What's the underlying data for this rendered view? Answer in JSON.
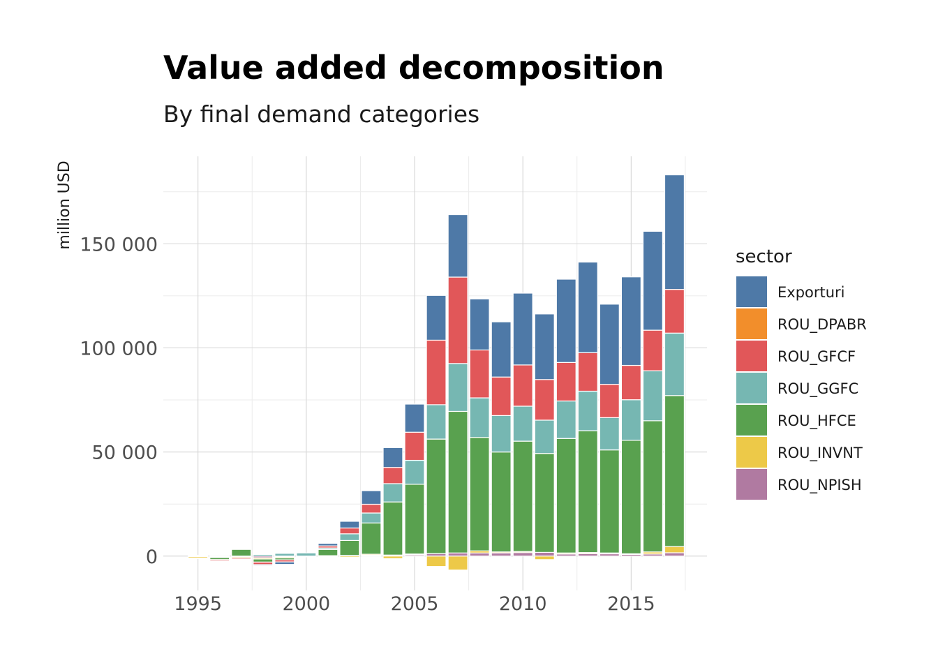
{
  "chart_data": {
    "type": "bar",
    "stacked": true,
    "title": "Value added decomposition",
    "subtitle": "By final demand categories",
    "xlabel": "",
    "ylabel": "million USD",
    "x": [
      1995,
      1996,
      1997,
      1998,
      1999,
      2000,
      2001,
      2002,
      2003,
      2004,
      2005,
      2006,
      2007,
      2008,
      2009,
      2010,
      2011,
      2012,
      2013,
      2014,
      2015,
      2016,
      2017
    ],
    "x_ticks": [
      {
        "value": 1995,
        "label": "1995"
      },
      {
        "value": 2000,
        "label": "2000"
      },
      {
        "value": 2005,
        "label": "2005"
      },
      {
        "value": 2010,
        "label": "2010"
      },
      {
        "value": 2015,
        "label": "2015"
      }
    ],
    "y_ticks": [
      {
        "value": 0,
        "label": "0"
      },
      {
        "value": 50000,
        "label": "50 000"
      },
      {
        "value": 100000,
        "label": "100 000"
      },
      {
        "value": 150000,
        "label": "150 000"
      }
    ],
    "xlim": [
      1993.4,
      2018.5
    ],
    "ylim": [
      -16500,
      192000
    ],
    "grid": true,
    "legend": {
      "title": "sector",
      "position": "right"
    },
    "series": [
      {
        "name": "Exporturi",
        "color": "#4e79a7",
        "values": [
          0,
          0,
          0,
          -500,
          -1200,
          0,
          1200,
          3200,
          6500,
          9500,
          13500,
          21500,
          30000,
          24500,
          26500,
          34500,
          31500,
          40000,
          43500,
          38500,
          42500,
          47500,
          55000
        ]
      },
      {
        "name": "ROU_DPABR",
        "color": "#f28e2b",
        "values": [
          0,
          0,
          0,
          0,
          0,
          0,
          0,
          0,
          0,
          0,
          0,
          0,
          0,
          0,
          0,
          0,
          0,
          0,
          0,
          0,
          0,
          0,
          0
        ]
      },
      {
        "name": "ROU_GFCF",
        "color": "#e15759",
        "values": [
          400,
          -600,
          -600,
          -1200,
          -1000,
          0,
          1000,
          2800,
          4200,
          7800,
          13500,
          31000,
          41500,
          23000,
          18500,
          19800,
          19500,
          18500,
          18500,
          16000,
          16500,
          19500,
          21000
        ]
      },
      {
        "name": "ROU_GGFC",
        "color": "#76b7b2",
        "values": [
          0,
          0,
          0,
          800,
          1300,
          1500,
          700,
          3200,
          4800,
          8800,
          11500,
          16500,
          23000,
          19000,
          17500,
          16800,
          16000,
          18000,
          19000,
          15500,
          19500,
          24000,
          30000
        ]
      },
      {
        "name": "ROU_HFCE",
        "color": "#59a14f",
        "values": [
          -300,
          -1000,
          3200,
          -1500,
          -900,
          0,
          3000,
          7200,
          15000,
          25500,
          33500,
          55000,
          68000,
          54500,
          48000,
          53000,
          47500,
          55000,
          58500,
          49500,
          54500,
          63000,
          72500
        ]
      },
      {
        "name": "ROU_INVNT",
        "color": "#edc948",
        "values": [
          -700,
          -400,
          -500,
          -600,
          -500,
          -300,
          -400,
          -600,
          500,
          -1200,
          400,
          -5000,
          -6700,
          1000,
          500,
          500,
          -1700,
          500,
          500,
          400,
          300,
          1000,
          3000
        ]
      },
      {
        "name": "ROU_NPISH",
        "color": "#b07aa1",
        "values": [
          -200,
          -300,
          -300,
          -800,
          -400,
          -100,
          200,
          300,
          400,
          500,
          600,
          1200,
          1500,
          1500,
          1500,
          1700,
          1800,
          1000,
          1200,
          1100,
          800,
          1000,
          1600
        ]
      }
    ]
  }
}
